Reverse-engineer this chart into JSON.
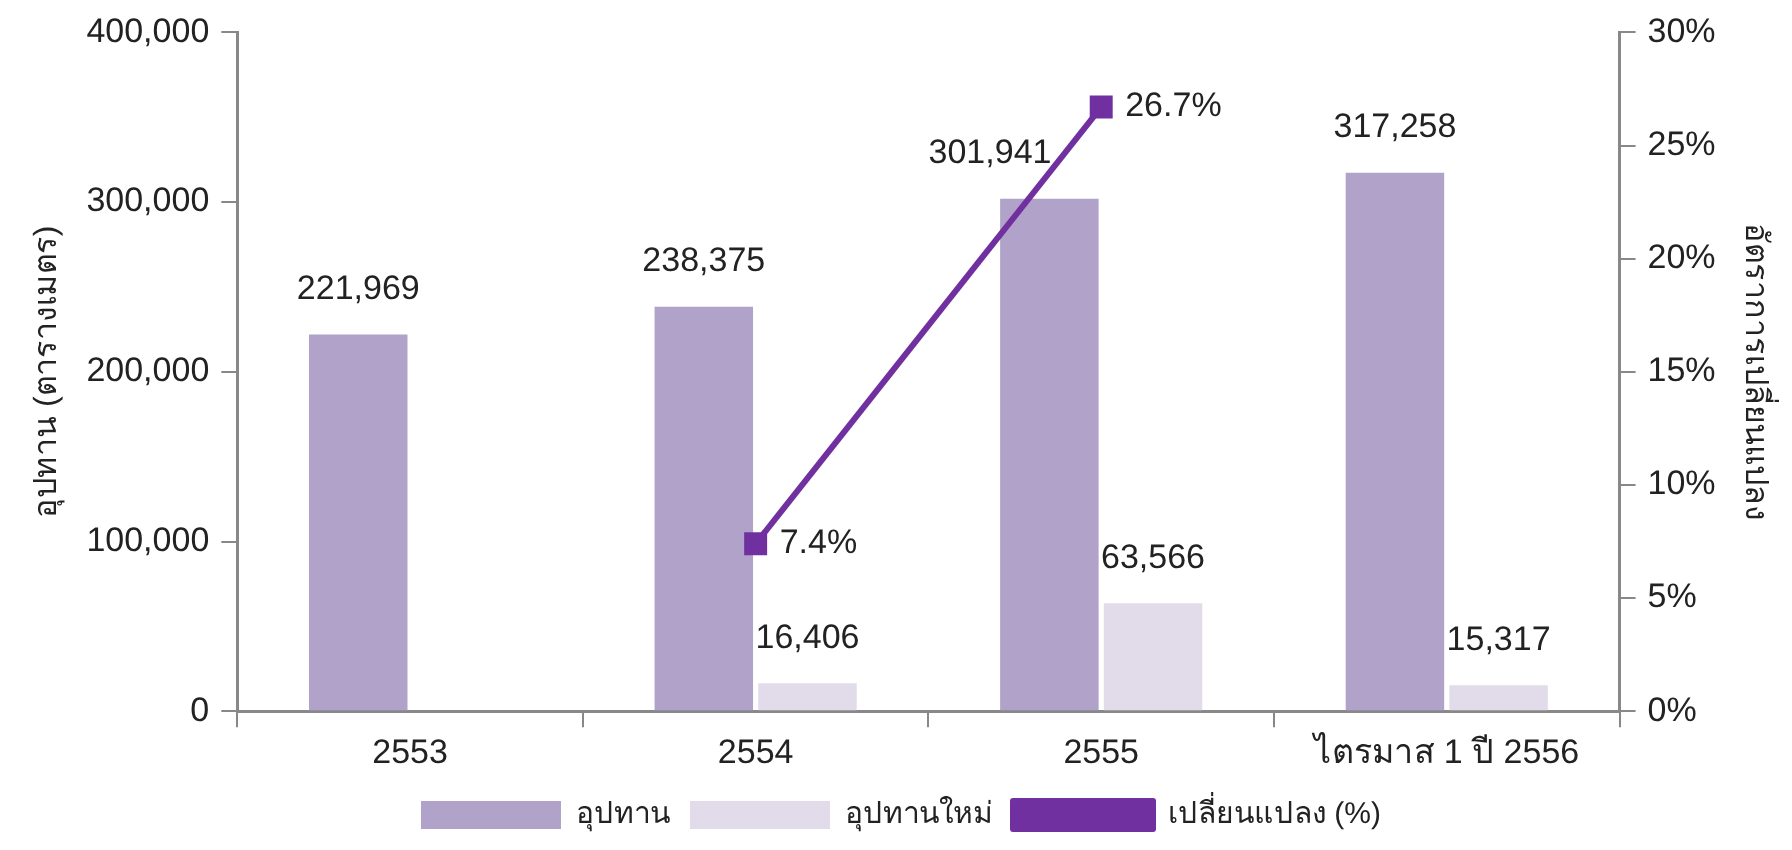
{
  "chart_data": {
    "type": "bar",
    "categories": [
      "2553",
      "2554",
      "2555",
      "ไตรมาส 1 ปี 2556"
    ],
    "ylabel": "อุปทาน (ตารางเมตร)",
    "y2label": "อัตราการเปลี่ยนแปลง",
    "series": [
      {
        "name": "อุปทาน",
        "color": "#b0a2c8",
        "values": [
          221969,
          238375,
          301941,
          317258
        ],
        "value_labels": [
          "221,969",
          "238,375",
          "301,941",
          "317,258"
        ]
      },
      {
        "name": "อุปทานใหม่",
        "color": "#e2dcea",
        "values": [
          null,
          16406,
          63566,
          15317
        ],
        "value_labels": [
          null,
          "16,406",
          "63,566",
          "15,317"
        ]
      },
      {
        "name": "เปลี่ยนแปลง (%)",
        "type": "line",
        "axis": "y2",
        "color": "#7030a0",
        "marker": "square",
        "values": [
          null,
          7.4,
          26.7,
          null
        ],
        "value_labels": [
          null,
          "7.4%",
          "26.7%",
          null
        ]
      }
    ],
    "ylim": [
      0,
      400000
    ],
    "yticks": [
      {
        "value": 0,
        "label": "0"
      },
      {
        "value": 100000,
        "label": "100,000"
      },
      {
        "value": 200000,
        "label": "200,000"
      },
      {
        "value": 300000,
        "label": "300,000"
      },
      {
        "value": 400000,
        "label": "400,000"
      }
    ],
    "y2lim": [
      0,
      30
    ],
    "y2ticks": [
      {
        "value": 0,
        "label": "0%"
      },
      {
        "value": 5,
        "label": "5%"
      },
      {
        "value": 10,
        "label": "10%"
      },
      {
        "value": 15,
        "label": "15%"
      },
      {
        "value": 20,
        "label": "20%"
      },
      {
        "value": 25,
        "label": "25%"
      },
      {
        "value": 30,
        "label": "30%"
      }
    ],
    "grid": false,
    "legend": "bottom"
  }
}
